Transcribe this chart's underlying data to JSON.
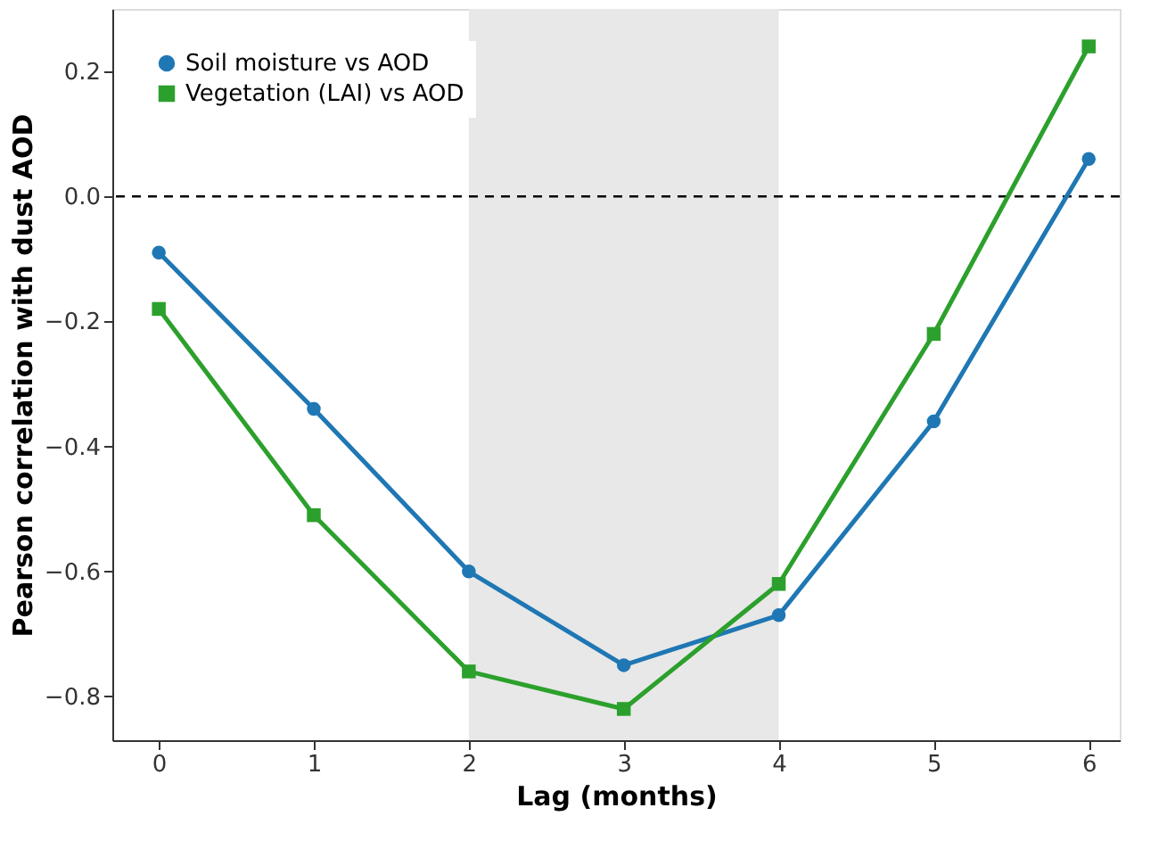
{
  "chart_data": {
    "type": "line",
    "xlabel": "Lag (months)",
    "ylabel": "Pearson correlation with dust AOD",
    "x": [
      0,
      1,
      2,
      3,
      4,
      5,
      6
    ],
    "series": [
      {
        "name": "Soil moisture vs AOD",
        "color": "#1f77b4",
        "marker": "circle",
        "values": [
          -0.09,
          -0.34,
          -0.6,
          -0.75,
          -0.67,
          -0.36,
          0.06
        ]
      },
      {
        "name": "Vegetation (LAI) vs AOD",
        "color": "#2ca02c",
        "marker": "square",
        "values": [
          -0.18,
          -0.51,
          -0.76,
          -0.82,
          -0.62,
          -0.22,
          0.24
        ]
      }
    ],
    "xlim": [
      -0.3,
      6.2
    ],
    "xticks": [
      0,
      1,
      2,
      3,
      4,
      5,
      6
    ],
    "ylim": [
      -0.87,
      0.3
    ],
    "yticks": [
      {
        "value": -0.8,
        "label": "−0.8"
      },
      {
        "value": -0.6,
        "label": "−0.6"
      },
      {
        "value": -0.4,
        "label": "−0.4"
      },
      {
        "value": -0.2,
        "label": "−0.2"
      },
      {
        "value": 0,
        "label": "0.0"
      },
      {
        "value": 0.2,
        "label": "0.2"
      }
    ],
    "ref_lines": [
      {
        "axis": "y",
        "value": 0,
        "color": "#000000",
        "line_style": "dashed"
      }
    ],
    "bands": [
      {
        "axis": "x",
        "from": 2,
        "to": 4,
        "color": "#e8e8e8"
      }
    ],
    "grid": false,
    "legend": "top left",
    "line_style": "solid"
  }
}
